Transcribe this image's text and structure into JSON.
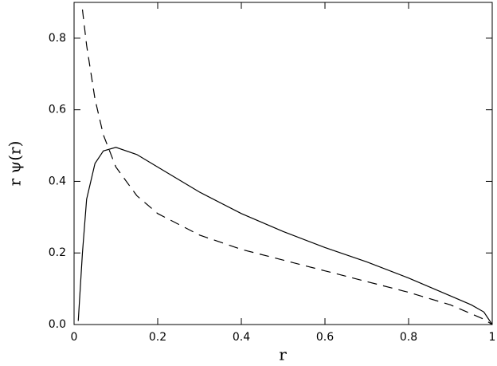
{
  "chart_data": {
    "type": "line",
    "x_label": "r",
    "y_label": "r ψ(r)",
    "x": [
      0.01,
      0.02,
      0.03,
      0.05,
      0.07,
      0.1,
      0.15,
      0.2,
      0.3,
      0.4,
      0.5,
      0.6,
      0.7,
      0.8,
      0.9,
      0.95,
      0.98,
      1.0
    ],
    "series": [
      {
        "color": "#000000",
        "dash": false,
        "values": [
          0.01,
          0.2,
          0.35,
          0.45,
          0.485,
          0.495,
          0.475,
          0.44,
          0.37,
          0.31,
          0.26,
          0.215,
          0.175,
          0.13,
          0.08,
          0.055,
          0.035,
          0.0
        ]
      },
      {
        "color": "#000000",
        "dash": true,
        "values": [
          null,
          0.88,
          0.78,
          0.63,
          0.53,
          0.44,
          0.36,
          0.31,
          0.25,
          0.21,
          0.18,
          0.15,
          0.12,
          0.09,
          0.055,
          0.03,
          0.015,
          0.0
        ]
      }
    ],
    "xlim": [
      0,
      1
    ],
    "xticks": [
      0,
      0.2,
      0.4,
      0.6,
      0.8,
      1
    ],
    "ylim": [
      0,
      0.9
    ],
    "yticks": [
      {
        "value": 0,
        "label": "0.0"
      },
      0.2,
      0.4,
      0.6,
      0.8
    ]
  }
}
